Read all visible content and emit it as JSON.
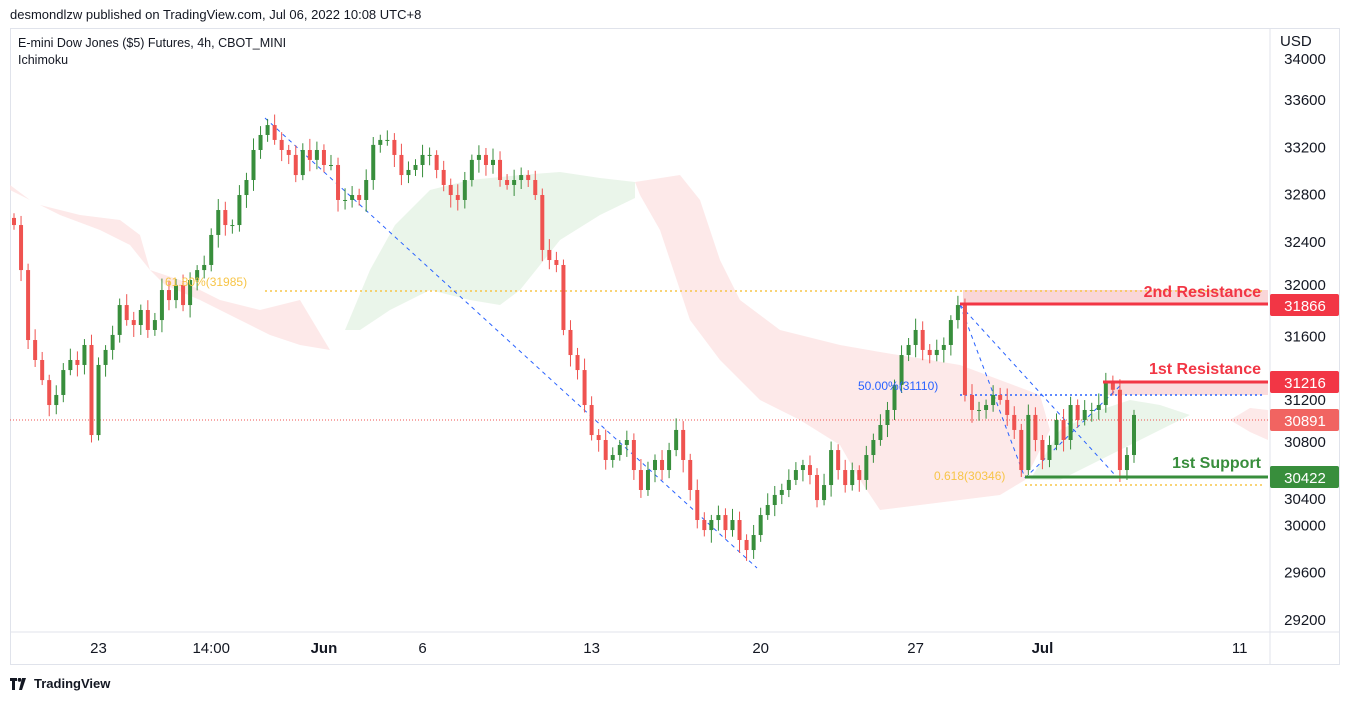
{
  "header": {
    "published": "desmondlzw published on TradingView.com, Jul 06, 2022 10:08 UTC+8",
    "symbol": "E-mini Dow Jones ($5) Futures, 4h, CBOT_MINI",
    "indicator": "Ichimoku"
  },
  "footer": {
    "brand": "TradingView"
  },
  "colors": {
    "up": "#388e3c",
    "down": "#ef5350",
    "resistance": "#f23645",
    "support": "#388e3c",
    "fib": "#f7c548",
    "trend": "#2962ff"
  },
  "chart_data": {
    "type": "candlestick",
    "currency": "USD",
    "ylim": [
      29000,
      34100
    ],
    "y_ticks": [
      34000,
      33600,
      33200,
      32800,
      32400,
      32000,
      31600,
      31200,
      30800,
      30400,
      30000,
      29600,
      29200
    ],
    "x_ticks": [
      {
        "label": "23",
        "i": 12
      },
      {
        "label": "14:00",
        "i": 28
      },
      {
        "label": "Jun",
        "i": 44
      },
      {
        "label": "6",
        "i": 58
      },
      {
        "label": "13",
        "i": 82
      },
      {
        "label": "20",
        "i": 106
      },
      {
        "label": "27",
        "i": 128
      },
      {
        "label": "Jul",
        "i": 146
      },
      {
        "label": "11",
        "i": 174
      }
    ],
    "closes": [
      32542,
      32161,
      31569,
      31400,
      31230,
      31019,
      31104,
      31315,
      31400,
      31358,
      31527,
      30765,
      31358,
      31485,
      31612,
      31865,
      31738,
      31696,
      31823,
      31654,
      31738,
      31992,
      31907,
      32035,
      31865,
      32077,
      32161,
      32204,
      32458,
      32669,
      32542,
      32542,
      32796,
      32923,
      33177,
      33304,
      33388,
      33262,
      33177,
      33135,
      32965,
      33177,
      33093,
      33177,
      33050,
      33050,
      32754,
      32754,
      32796,
      32754,
      32923,
      33220,
      33262,
      33262,
      33135,
      32965,
      33008,
      33050,
      33135,
      33135,
      33008,
      32881,
      32796,
      32754,
      32923,
      33093,
      33135,
      33050,
      33093,
      32923,
      32881,
      32923,
      32965,
      32923,
      32796,
      32331,
      32246,
      32204,
      31654,
      31442,
      31315,
      31019,
      30765,
      30723,
      30554,
      30596,
      30681,
      30723,
      30469,
      30300,
      30469,
      30554,
      30469,
      30638,
      30808,
      30554,
      30300,
      30046,
      29961,
      30046,
      30088,
      29961,
      30046,
      29877,
      29792,
      29919,
      30088,
      30173,
      30258,
      30300,
      30385,
      30469,
      30511,
      30427,
      30215,
      30342,
      30638,
      30469,
      30342,
      30469,
      30385,
      30596,
      30723,
      30850,
      30977,
      31189,
      31442,
      31527,
      31654,
      31485,
      31442,
      31485,
      31527,
      31738,
      31865,
      31104,
      30977,
      30977,
      31019,
      31104,
      31062,
      30935,
      30808,
      30469,
      30935,
      30723,
      30554,
      30681,
      30892,
      30723,
      31019,
      30892,
      30977,
      30977,
      31019,
      31216,
      31148,
      30469,
      30596,
      30935
    ],
    "levels": [
      {
        "label": "2nd Resistance",
        "value": 31866,
        "color": "#f23645"
      },
      {
        "label": "1st Resistance",
        "value": 31216,
        "color": "#f23645"
      },
      {
        "label": "1st Support",
        "value": 30422,
        "color": "#388e3c"
      }
    ],
    "last_price": 30891,
    "fib_labels": [
      {
        "text": "61.80%(31985)",
        "value": 31985
      },
      {
        "text": "50.00%(31110)",
        "value": 31110
      },
      {
        "text": "0.618(30346)",
        "value": 30346
      }
    ]
  }
}
